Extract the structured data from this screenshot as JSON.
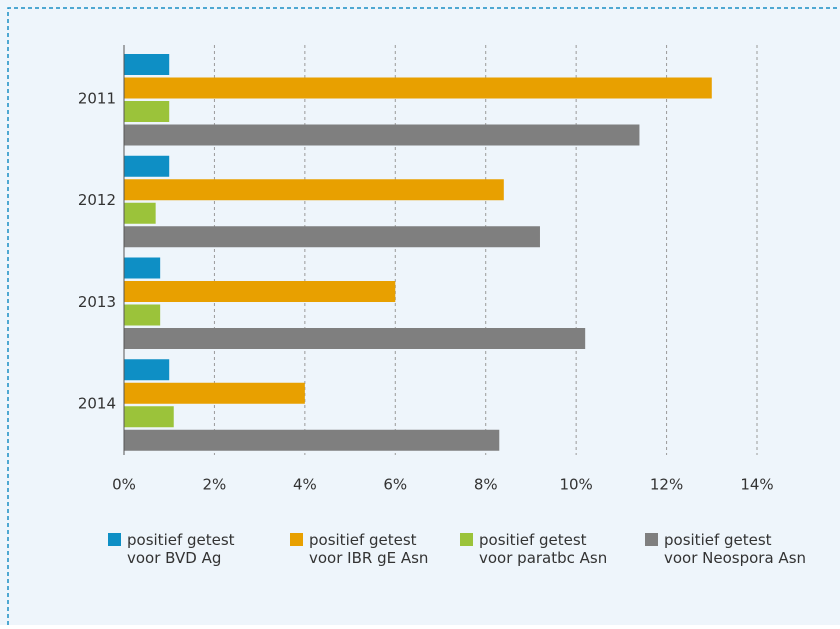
{
  "chart_data": {
    "type": "hbar",
    "categories": [
      "2011",
      "2012",
      "2013",
      "2014"
    ],
    "series": [
      {
        "name": "positief getest voor BVD Ag",
        "color": "#0e8fc5",
        "values": [
          1.0,
          1.0,
          0.8,
          1.0
        ]
      },
      {
        "name": "positief getest voor IBR gE Asn",
        "color": "#e8a000",
        "values": [
          13.0,
          8.4,
          6.0,
          4.0
        ]
      },
      {
        "name": "positief getest voor paratbc Asn",
        "color": "#9bc33a",
        "values": [
          1.0,
          0.7,
          0.8,
          1.1
        ]
      },
      {
        "name": "positief getest voor Neospora Asn",
        "color": "#7f7f7f",
        "values": [
          11.4,
          9.2,
          10.2,
          8.3
        ]
      }
    ],
    "xlim": [
      0,
      14
    ],
    "xticks": [
      {
        "value": 0,
        "label": "0%"
      },
      {
        "value": 2,
        "label": "2%"
      },
      {
        "value": 4,
        "label": "4%"
      },
      {
        "value": 6,
        "label": "6%"
      },
      {
        "value": 8,
        "label": "8%"
      },
      {
        "value": 10,
        "label": "10%"
      },
      {
        "value": 12,
        "label": "12%"
      },
      {
        "value": 14,
        "label": "14%"
      }
    ],
    "grid": true
  }
}
